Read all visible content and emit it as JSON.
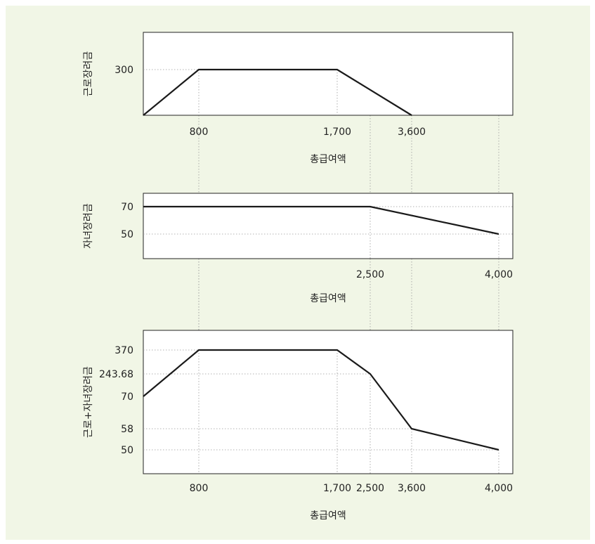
{
  "background": "#f1f6e6",
  "line_color": "#1a1a1a",
  "chart_data": [
    {
      "type": "line",
      "xlabel": "총급여액",
      "ylabel": "근로장려금",
      "x_ticks": [
        "800",
        "1,700",
        "3,600"
      ],
      "y_ticks": [
        "300"
      ],
      "series": [
        {
          "points": [
            [
              0,
              0
            ],
            [
              800,
              300
            ],
            [
              1700,
              300
            ],
            [
              3600,
              0
            ]
          ]
        }
      ]
    },
    {
      "type": "line",
      "xlabel": "총급여액",
      "ylabel": "자녀장려금",
      "x_ticks": [
        "2,500",
        "4,000"
      ],
      "y_ticks": [
        "70",
        "50"
      ],
      "series": [
        {
          "points": [
            [
              0,
              70
            ],
            [
              2500,
              70
            ],
            [
              4000,
              50
            ]
          ]
        }
      ]
    },
    {
      "type": "line",
      "xlabel": "총급여액",
      "ylabel": "근로+자녀장려금",
      "x_ticks": [
        "800",
        "1,700",
        "2,500",
        "3,600",
        "4,000"
      ],
      "y_ticks": [
        "370",
        "243.68",
        "70",
        "58",
        "50"
      ],
      "series": [
        {
          "points": [
            [
              0,
              70
            ],
            [
              800,
              370
            ],
            [
              1700,
              370
            ],
            [
              2500,
              243.68
            ],
            [
              3600,
              58
            ],
            [
              4000,
              50
            ]
          ]
        }
      ]
    }
  ]
}
